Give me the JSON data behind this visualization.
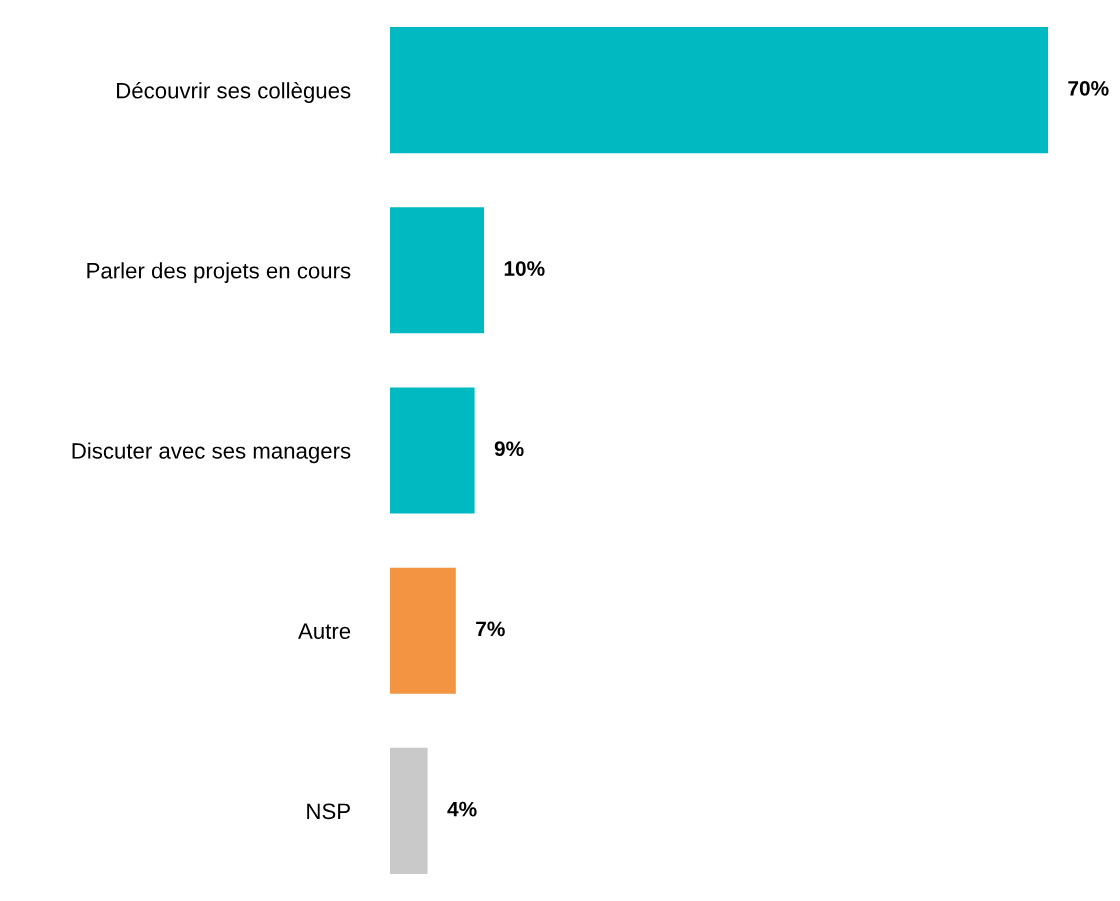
{
  "chart_data": {
    "type": "bar",
    "orientation": "horizontal",
    "categories": [
      "Découvrir ses collègues",
      "Parler des projets en cours",
      "Discuter avec ses managers",
      "Autre",
      "NSP"
    ],
    "values": [
      70,
      10,
      9,
      7,
      4
    ],
    "colors": [
      "#00b9c1",
      "#00b9c1",
      "#00b9c1",
      "#f39443",
      "#c9c9c9"
    ],
    "value_labels": [
      "70%",
      "10%",
      "9%",
      "7%",
      "4%"
    ],
    "grid": false,
    "legend": false
  }
}
